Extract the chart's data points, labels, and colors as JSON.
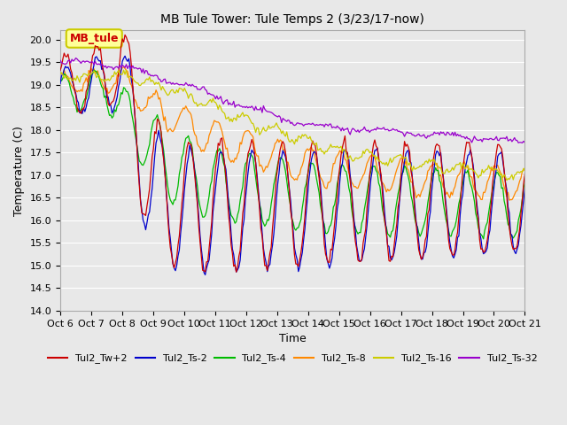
{
  "title": "MB Tule Tower: Tule Temps 2 (3/23/17-now)",
  "xlabel": "Time",
  "ylabel": "Temperature (C)",
  "ylim": [
    14.0,
    20.2
  ],
  "yticks": [
    14.0,
    14.5,
    15.0,
    15.5,
    16.0,
    16.5,
    17.0,
    17.5,
    18.0,
    18.5,
    19.0,
    19.5,
    20.0
  ],
  "xtick_labels": [
    "Oct 6",
    "Oct 7",
    "Oct 8",
    "Oct 9",
    "Oct 10",
    "Oct 11",
    "Oct 12",
    "Oct 13",
    "Oct 14",
    "Oct 15",
    "Oct 16",
    "Oct 17",
    "Oct 18",
    "Oct 19",
    "Oct 20",
    "Oct 21"
  ],
  "bg_color": "#e8e8e8",
  "plot_bg_color": "#e8e8e8",
  "grid_color": "#ffffff",
  "series": [
    {
      "label": "Tul2_Tw+2",
      "color": "#cc0000"
    },
    {
      "label": "Tul2_Ts-2",
      "color": "#0000cc"
    },
    {
      "label": "Tul2_Ts-4",
      "color": "#00bb00"
    },
    {
      "label": "Tul2_Ts-8",
      "color": "#ff8800"
    },
    {
      "label": "Tul2_Ts-16",
      "color": "#cccc00"
    },
    {
      "label": "Tul2_Ts-32",
      "color": "#9900cc"
    }
  ],
  "annotation_text": "MB_tule",
  "annotation_color": "#cc0000",
  "annotation_bg": "#ffff99",
  "annotation_border": "#cccc00",
  "figsize": [
    6.4,
    4.8
  ],
  "dpi": 100
}
